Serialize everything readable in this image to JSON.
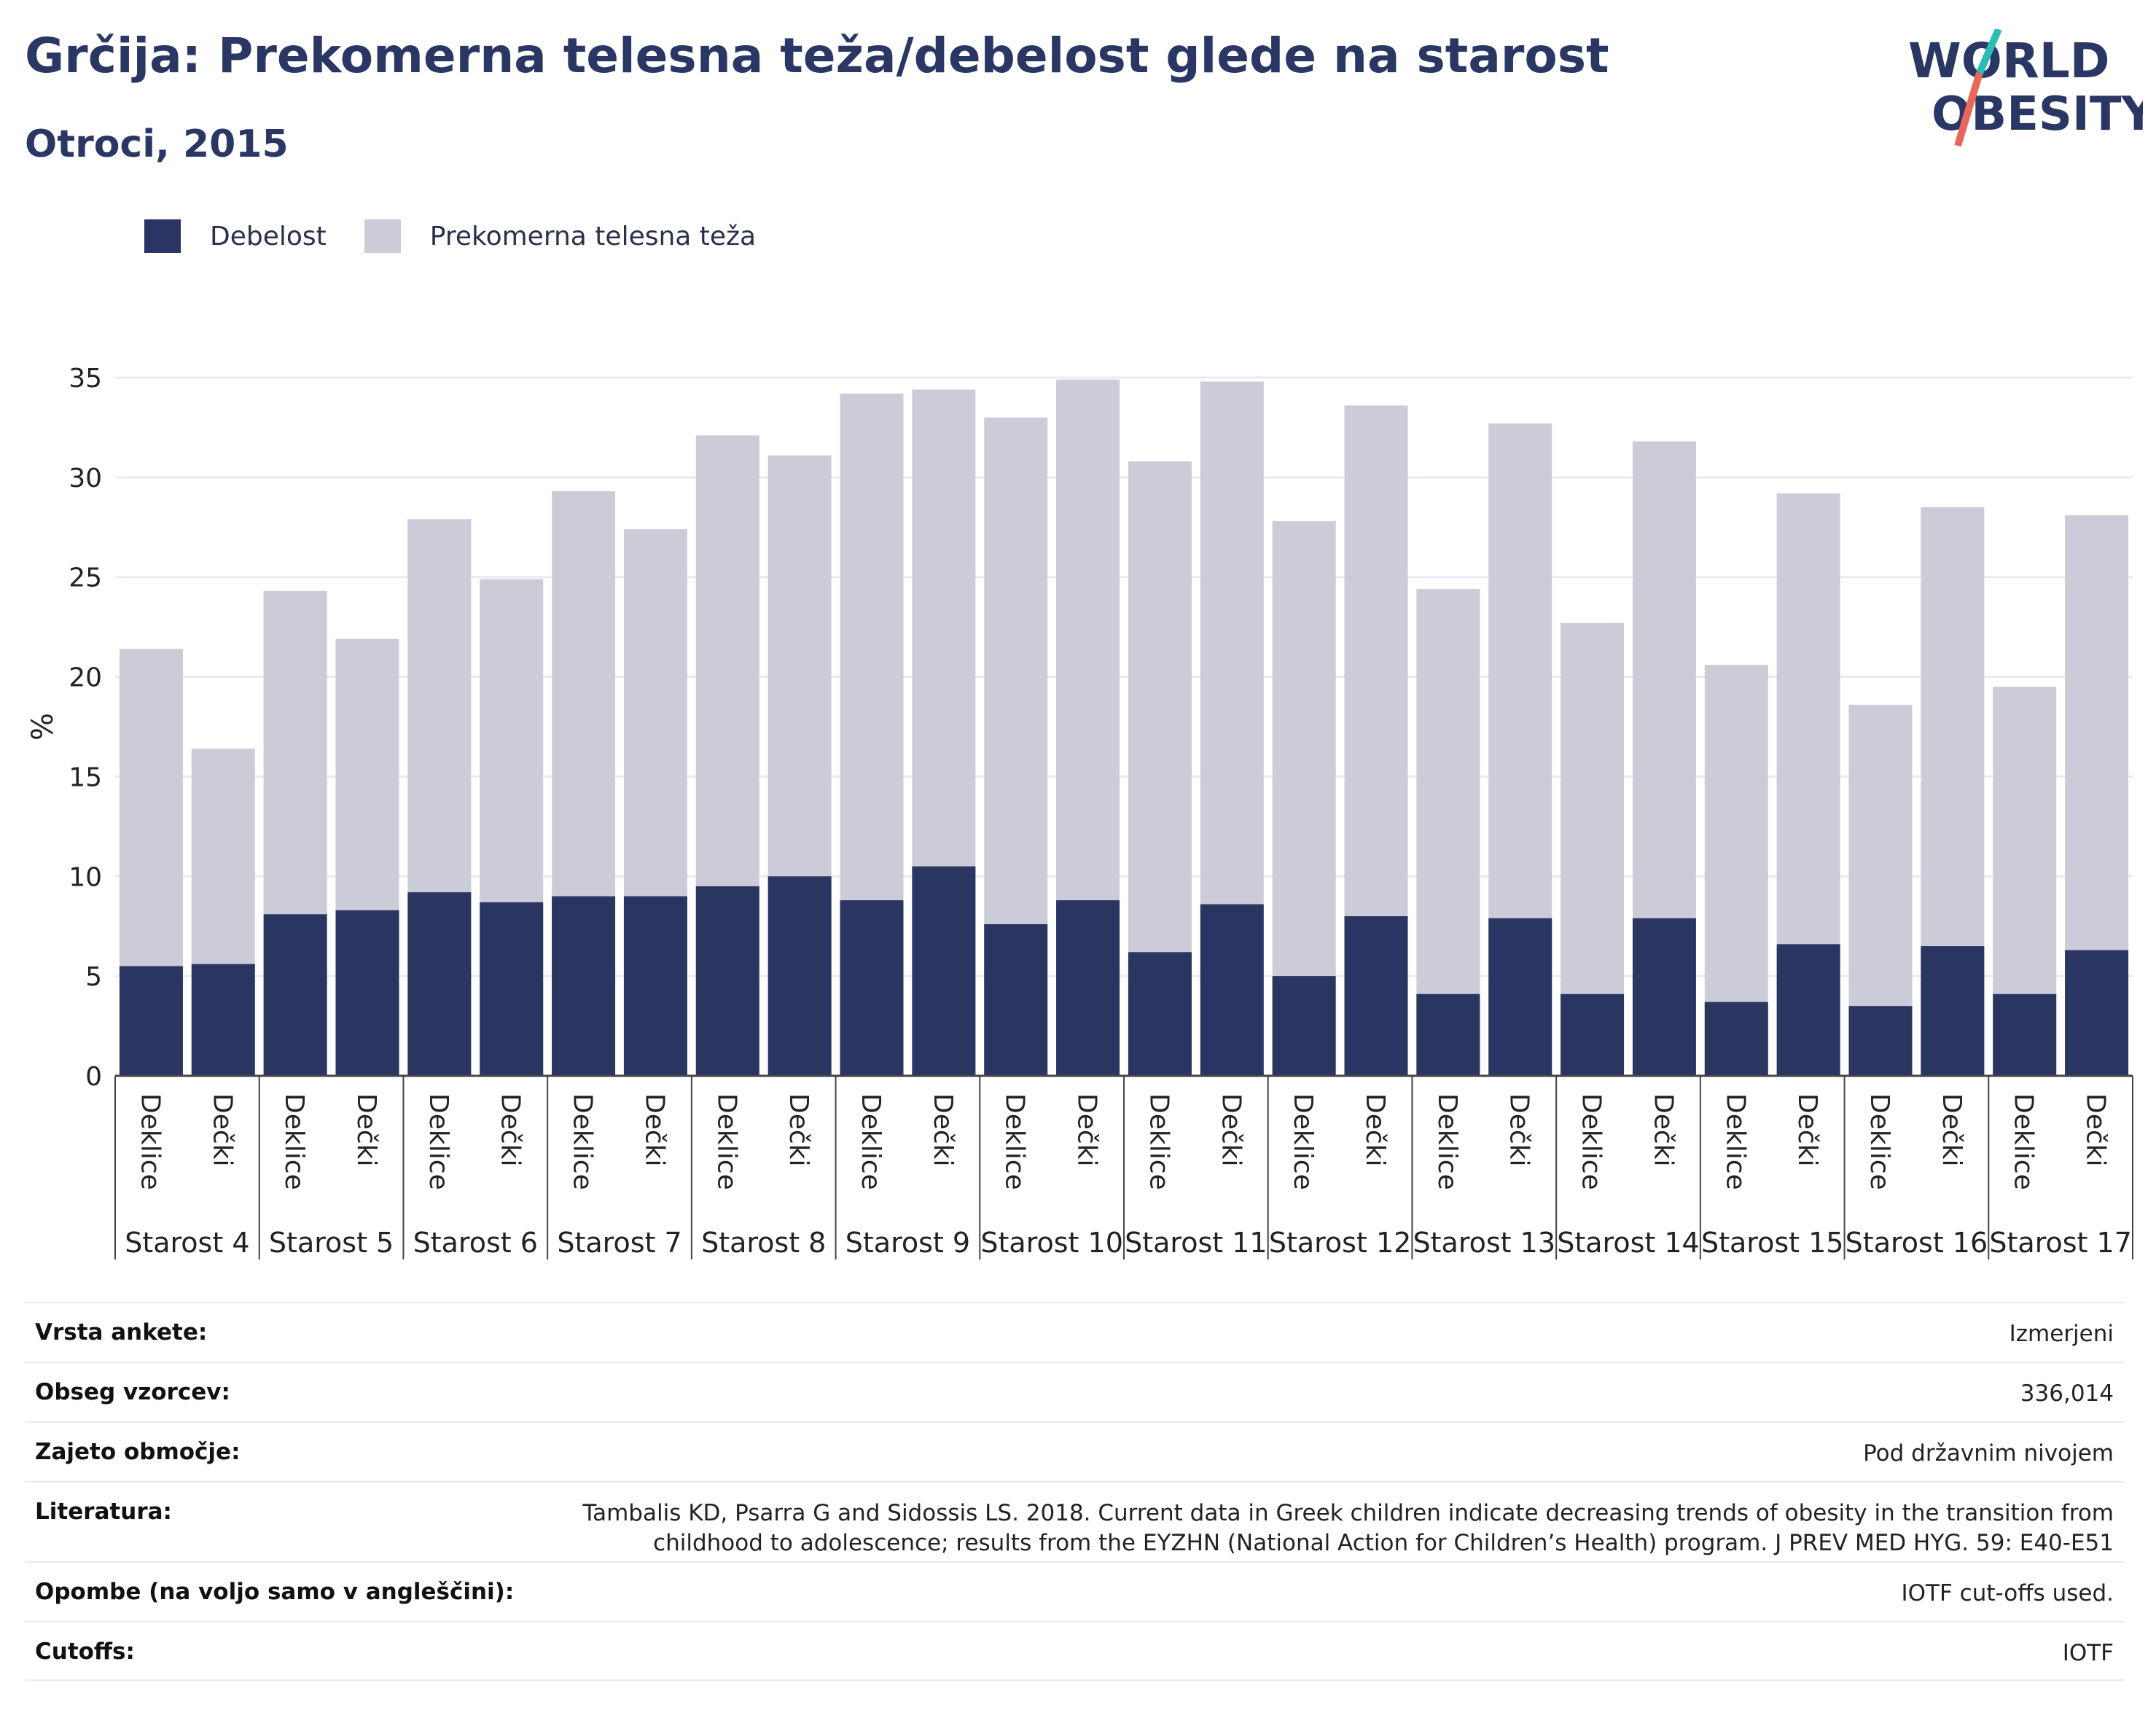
{
  "title": "Grčija: Prekomerna telesna teža/debelost glede na starost",
  "subtitle": "Otroci, 2015",
  "logo": {
    "line1": "WORLD",
    "line2": "OBESITY"
  },
  "colors": {
    "obesity": "#2a3562",
    "overweight": "#cbccd8",
    "text": "#2a3765",
    "logo_teal": "#2bbdb4",
    "logo_red": "#e8675a"
  },
  "legend": [
    {
      "label": "Debelost",
      "color": "#2a3562"
    },
    {
      "label": "Prekomerna telesna teža",
      "color": "#cbccd8"
    }
  ],
  "chart_data": {
    "type": "bar",
    "stacked": true,
    "ylabel": "%",
    "ylim": [
      0,
      35
    ],
    "yticks": [
      0,
      5,
      10,
      15,
      20,
      25,
      30,
      35
    ],
    "grid": true,
    "legend_position": "top-left",
    "sub_categories": [
      "Deklice",
      "Dečki"
    ],
    "groups": [
      "Starost 4",
      "Starost 5",
      "Starost 6",
      "Starost 7",
      "Starost 8",
      "Starost 9",
      "Starost 10",
      "Starost 11",
      "Starost 12",
      "Starost 13",
      "Starost 14",
      "Starost 15",
      "Starost 16",
      "Starost 17"
    ],
    "series": [
      {
        "name": "Debelost",
        "values": [
          [
            5.5,
            5.6
          ],
          [
            8.1,
            8.3
          ],
          [
            9.2,
            8.7
          ],
          [
            9.0,
            9.0
          ],
          [
            9.5,
            10.0
          ],
          [
            8.8,
            10.5
          ],
          [
            7.6,
            8.8
          ],
          [
            6.2,
            8.6
          ],
          [
            5.0,
            8.0
          ],
          [
            4.1,
            7.9
          ],
          [
            4.1,
            7.9
          ],
          [
            3.7,
            6.6
          ],
          [
            3.5,
            6.5
          ],
          [
            4.1,
            6.3
          ]
        ]
      },
      {
        "name": "Prekomerna telesna teža",
        "values": [
          [
            21.4,
            16.4
          ],
          [
            24.3,
            21.9
          ],
          [
            27.9,
            24.9
          ],
          [
            29.3,
            27.4
          ],
          [
            32.1,
            31.1
          ],
          [
            34.2,
            34.4
          ],
          [
            33.0,
            34.9
          ],
          [
            30.8,
            34.8
          ],
          [
            27.8,
            33.6
          ],
          [
            24.4,
            32.7
          ],
          [
            22.7,
            31.8
          ],
          [
            20.6,
            29.2
          ],
          [
            18.6,
            28.5
          ],
          [
            19.5,
            28.1
          ]
        ]
      }
    ]
  },
  "meta": [
    {
      "label": "Vrsta ankete:",
      "value": "Izmerjeni"
    },
    {
      "label": "Obseg vzorcev:",
      "value": "336,014"
    },
    {
      "label": "Zajeto območje:",
      "value": "Pod državnim nivojem"
    },
    {
      "label": "Literatura:",
      "value": "Tambalis KD, Psarra G and Sidossis LS. 2018. Current data in Greek children indicate decreasing trends of obesity in the transition from childhood to adolescence; results from the EYZHN (National Action for Children’s Health) program. J PREV MED HYG. 59: E40-E51"
    },
    {
      "label": "Opombe (na voljo samo v angleščini):",
      "value": "IOTF cut-offs used."
    },
    {
      "label": "Cutoffs:",
      "value": "IOTF"
    }
  ]
}
